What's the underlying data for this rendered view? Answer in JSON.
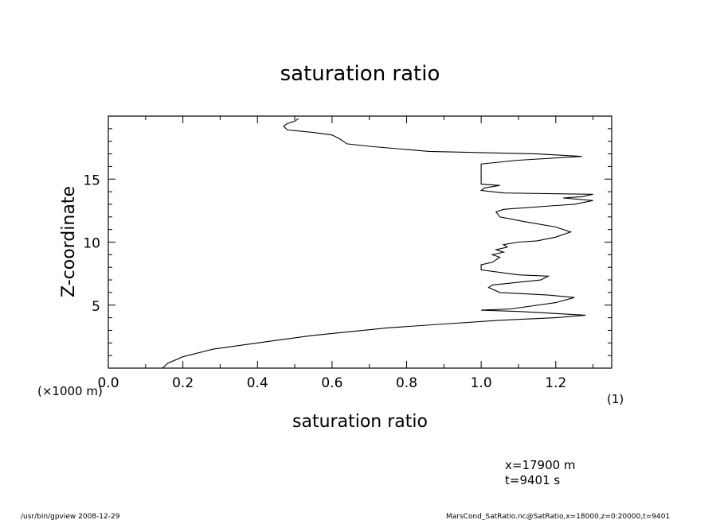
{
  "chart_data": {
    "type": "line",
    "title": "saturation ratio",
    "xlabel": "saturation ratio",
    "ylabel": "Z-coordinate",
    "y_unit": "(×1000 m)",
    "x_unit": "(1)",
    "xlim": [
      0.0,
      1.35
    ],
    "ylim": [
      0,
      20
    ],
    "x_ticks": [
      "0.0",
      "0.2",
      "0.4",
      "0.6",
      "0.8",
      "1.0",
      "1.2"
    ],
    "y_ticks": [
      "5",
      "10",
      "15"
    ],
    "grid": false,
    "series": [
      {
        "points": [
          [
            0.145,
            0.0
          ],
          [
            0.16,
            0.4
          ],
          [
            0.2,
            0.9
          ],
          [
            0.28,
            1.5
          ],
          [
            0.4,
            2.0
          ],
          [
            0.55,
            2.6
          ],
          [
            0.75,
            3.2
          ],
          [
            0.9,
            3.5
          ],
          [
            1.05,
            3.8
          ],
          [
            1.2,
            4.0
          ],
          [
            1.28,
            4.2
          ],
          [
            1.1,
            4.5
          ],
          [
            1.0,
            4.6
          ],
          [
            1.08,
            4.7
          ],
          [
            1.2,
            5.2
          ],
          [
            1.25,
            5.6
          ],
          [
            1.18,
            5.8
          ],
          [
            1.05,
            6.0
          ],
          [
            1.02,
            6.4
          ],
          [
            1.03,
            6.6
          ],
          [
            1.16,
            7.0
          ],
          [
            1.18,
            7.3
          ],
          [
            1.1,
            7.4
          ],
          [
            1.0,
            7.8
          ],
          [
            1.0,
            8.2
          ],
          [
            1.03,
            8.4
          ],
          [
            1.04,
            8.6
          ],
          [
            1.05,
            8.8
          ],
          [
            1.03,
            9.0
          ],
          [
            1.06,
            9.2
          ],
          [
            1.04,
            9.4
          ],
          [
            1.07,
            9.6
          ],
          [
            1.06,
            9.8
          ],
          [
            1.1,
            10.0
          ],
          [
            1.15,
            10.1
          ],
          [
            1.2,
            10.4
          ],
          [
            1.24,
            10.8
          ],
          [
            1.2,
            11.2
          ],
          [
            1.12,
            11.6
          ],
          [
            1.05,
            12.0
          ],
          [
            1.04,
            12.4
          ],
          [
            1.06,
            12.6
          ],
          [
            1.2,
            12.9
          ],
          [
            1.25,
            13.0
          ],
          [
            1.3,
            13.3
          ],
          [
            1.22,
            13.5
          ],
          [
            1.27,
            13.6
          ],
          [
            1.3,
            13.8
          ],
          [
            1.06,
            13.9
          ],
          [
            1.0,
            14.1
          ],
          [
            1.01,
            14.3
          ],
          [
            1.05,
            14.5
          ],
          [
            1.0,
            14.6
          ],
          [
            1.0,
            15.2
          ],
          [
            1.0,
            16.2
          ],
          [
            1.1,
            16.5
          ],
          [
            1.27,
            16.8
          ],
          [
            1.15,
            17.0
          ],
          [
            0.86,
            17.2
          ],
          [
            0.7,
            17.6
          ],
          [
            0.64,
            17.8
          ],
          [
            0.62,
            18.2
          ],
          [
            0.6,
            18.5
          ],
          [
            0.55,
            18.7
          ],
          [
            0.48,
            18.9
          ],
          [
            0.47,
            19.2
          ],
          [
            0.48,
            19.4
          ],
          [
            0.5,
            19.6
          ],
          [
            0.51,
            19.8
          ]
        ]
      }
    ]
  },
  "info": {
    "x_pos": "x=17900  m",
    "t_val": "t=9401  s"
  },
  "footer": {
    "left": "/usr/bin/gpview   2008-12-29",
    "right": "MarsCond_SatRatio.nc@SatRatio,x=18000,z=0:20000,t=9401"
  }
}
